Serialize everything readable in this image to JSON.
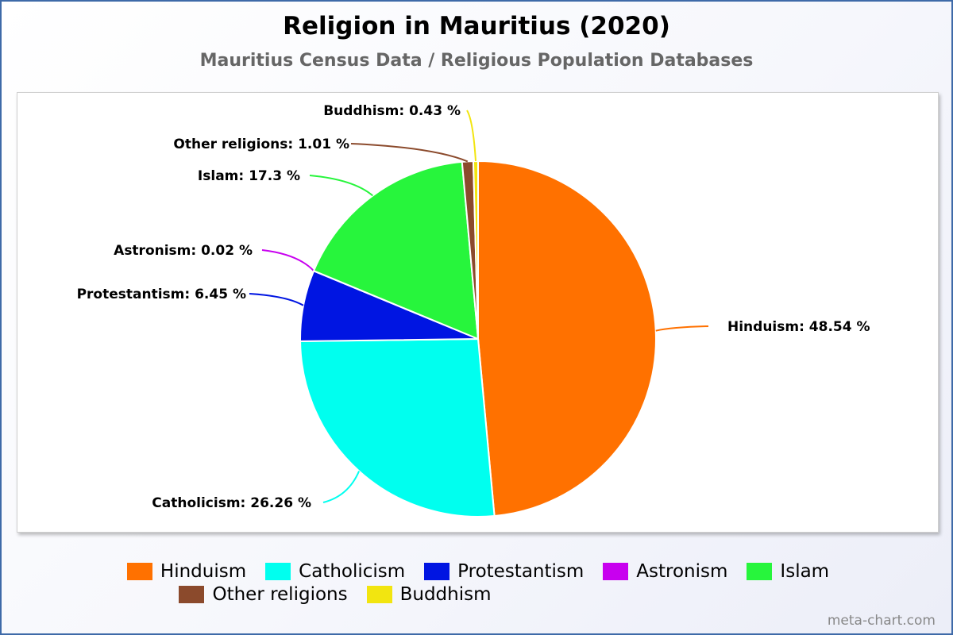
{
  "chart_data": {
    "type": "pie",
    "title": "Religion in Mauritius (2020)",
    "subtitle": "Mauritius Census Data / Religious Population Databases",
    "slices": [
      {
        "name": "Hinduism",
        "value": 48.54,
        "label": "Hinduism: 48.54 %",
        "color": "#ff7100"
      },
      {
        "name": "Catholicism",
        "value": 26.26,
        "label": "Catholicism: 26.26 %",
        "color": "#00ffef"
      },
      {
        "name": "Protestantism",
        "value": 6.45,
        "label": "Protestantism: 6.45 %",
        "color": "#0015e2"
      },
      {
        "name": "Astronism",
        "value": 0.02,
        "label": "Astronism: 0.02 %",
        "color": "#c800ef"
      },
      {
        "name": "Islam",
        "value": 17.3,
        "label": "Islam: 17.3 %",
        "color": "#27f53c"
      },
      {
        "name": "Other religions",
        "value": 1.01,
        "label": "Other religions: 1.01 %",
        "color": "#8b4a2c"
      },
      {
        "name": "Buddhism",
        "value": 0.43,
        "label": "Buddhism: 0.43 %",
        "color": "#f2e510"
      }
    ],
    "legend_placement": "bottom"
  },
  "credit": "meta-chart.com"
}
